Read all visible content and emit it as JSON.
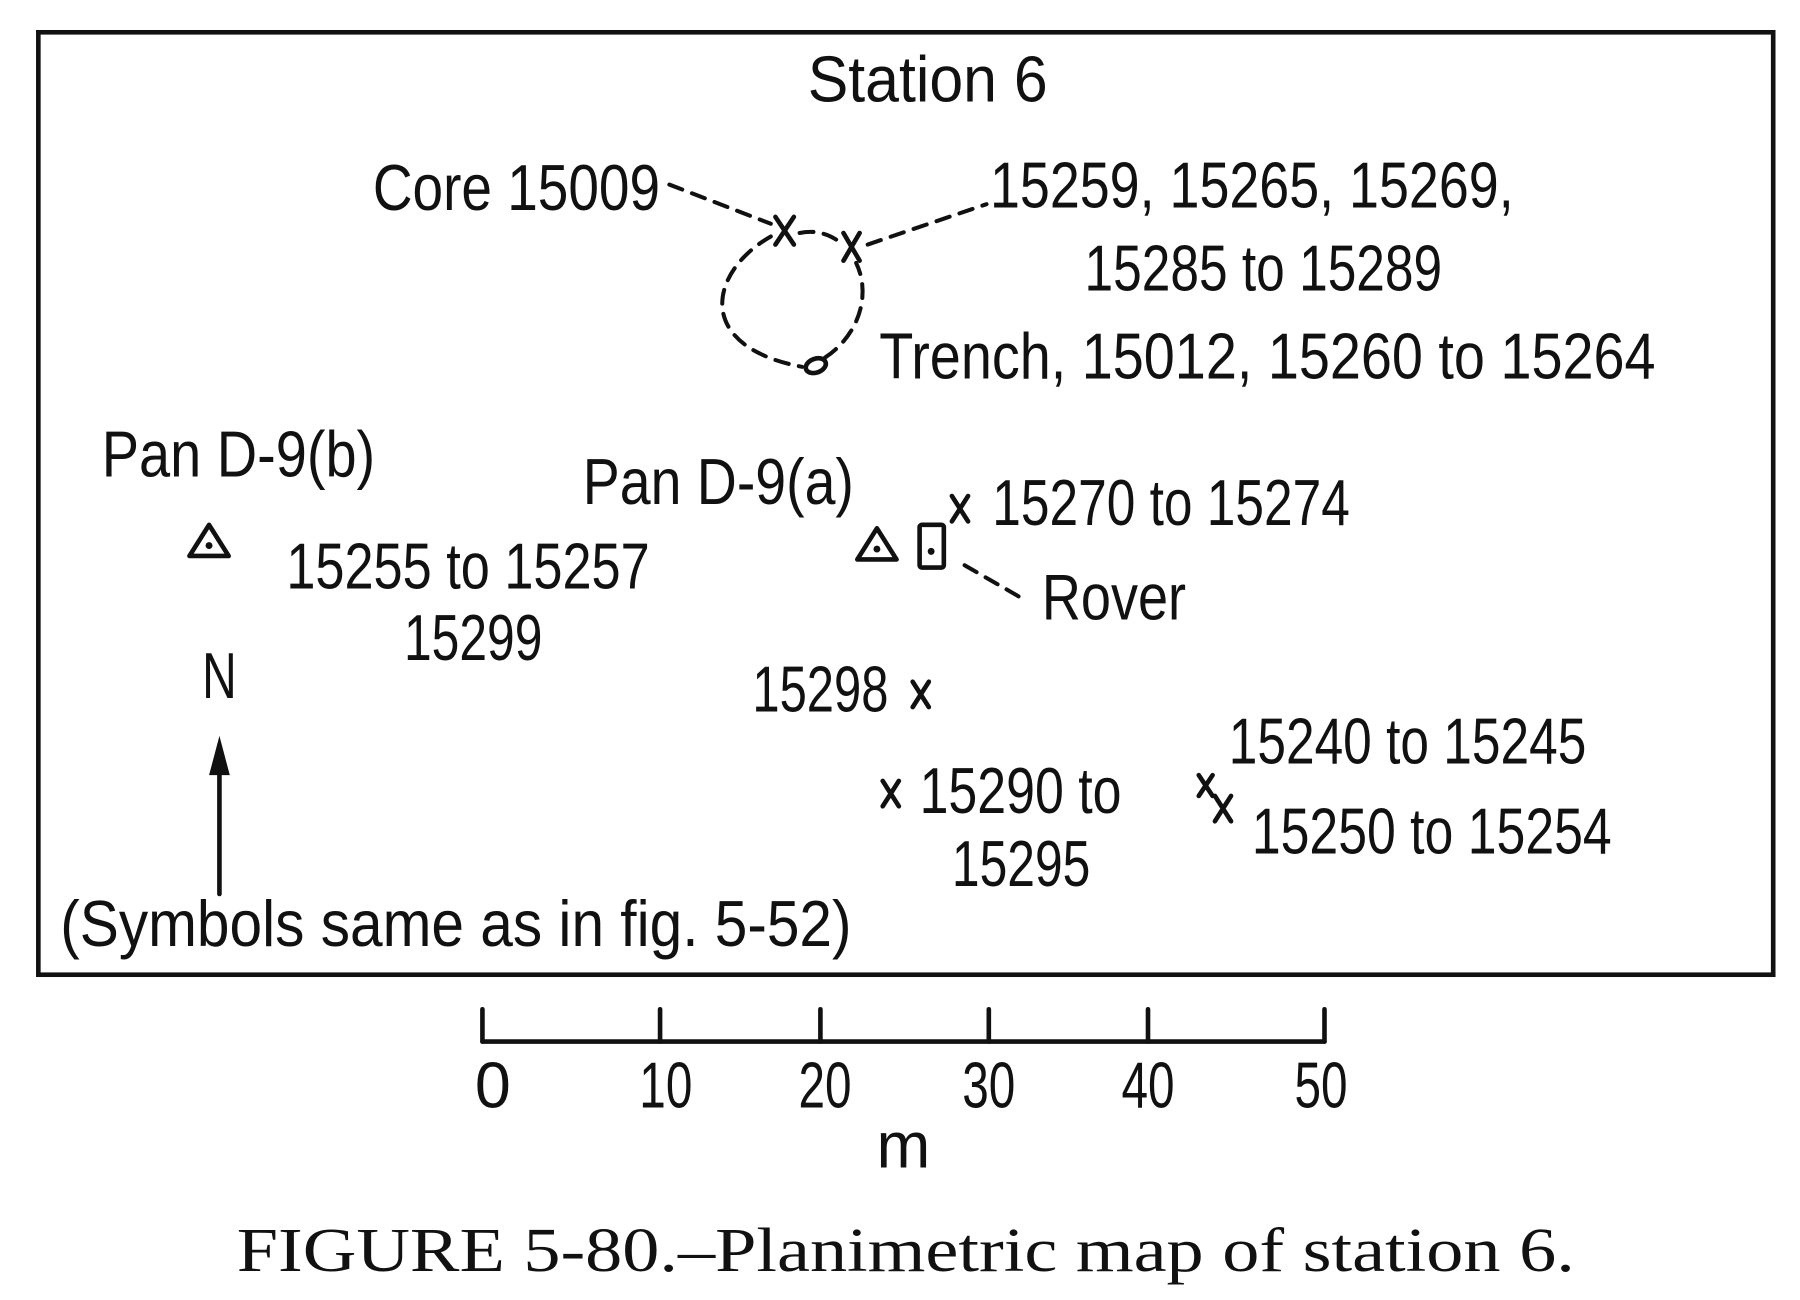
{
  "map": {
    "title": "Station 6",
    "labels": {
      "core": "Core 15009",
      "samples_top_1": "15259, 15265, 15269,",
      "samples_top_2": "15285 to 15289",
      "trench": "Trench, 15012, 15260 to 15264",
      "pan_b": "Pan D-9(b)",
      "pan_a": "Pan D-9(a)",
      "samples_15270": "15270 to 15274",
      "samples_15255": "15255 to 15257",
      "samples_15299": "15299",
      "rover": "Rover",
      "north": "N",
      "samples_15298": "15298",
      "samples_15240": "15240 to 15245",
      "samples_15290_1": "15290 to",
      "samples_15290_2": "15295",
      "samples_15250": "15250 to 15254",
      "symbols_note": "(Symbols same as in fig. 5-52)"
    },
    "symbols": {
      "sample": "x-mark",
      "pan_station": "triangle-dot-icon",
      "rover": "rectangle-dot-icon",
      "north_arrow": "arrow-up-icon"
    }
  },
  "scale_bar": {
    "ticks": [
      "0",
      "10",
      "20",
      "30",
      "40",
      "50"
    ],
    "unit": "m"
  },
  "caption": "FIGURE 5-80.–Planimetric map of station 6."
}
